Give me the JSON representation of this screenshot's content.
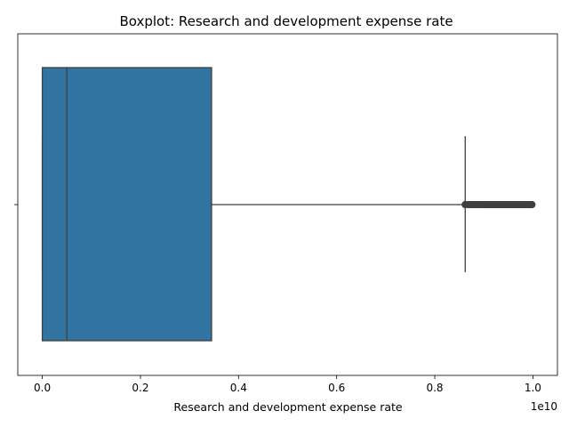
{
  "chart_data": {
    "type": "boxplot",
    "title": "Boxplot:  Research and development expense rate",
    "xlabel": "Research and development expense rate",
    "ylabel": "",
    "orientation": "horizontal",
    "x_offset_label": "1e10",
    "x_tick_values": [
      0.0,
      0.2,
      0.4,
      0.6,
      0.8,
      1.0
    ],
    "x_tick_labels": [
      "0.0",
      "0.2",
      "0.4",
      "0.6",
      "0.8",
      "1.0"
    ],
    "xlim": [
      -0.05,
      1.05
    ],
    "box": {
      "min": 0.0,
      "q1": 0.0,
      "median": 0.05,
      "q3": 0.345,
      "whisker_high": 0.862
    },
    "outliers": [
      0.862,
      0.868,
      0.872,
      0.877,
      0.882,
      0.887,
      0.892,
      0.897,
      0.902,
      0.906,
      0.91,
      0.914,
      0.918,
      0.922,
      0.926,
      0.93,
      0.934,
      0.938,
      0.942,
      0.946,
      0.95,
      0.954,
      0.958,
      0.962,
      0.966,
      0.97,
      0.974,
      0.978,
      0.982,
      0.986,
      0.99,
      0.994,
      0.998
    ],
    "colors": {
      "box_fill": "#3274a1",
      "line": "#3f3f3f",
      "outlier_edge": "#3f3f3f",
      "outlier_fill": "#3f3f3f"
    },
    "grid": false
  }
}
